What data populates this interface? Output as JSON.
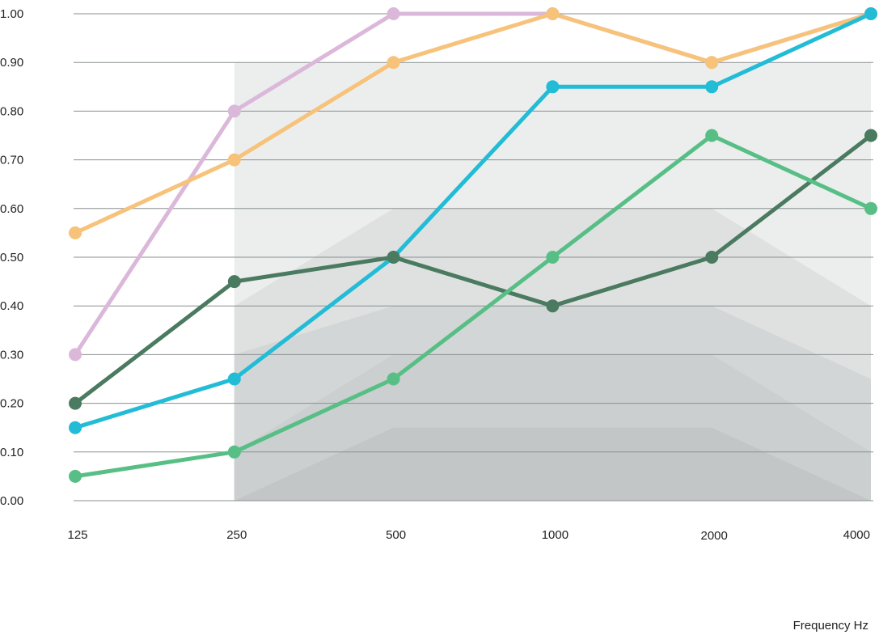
{
  "chart_data": {
    "type": "line",
    "xlabel": "Frequency Hz",
    "ylabel": "",
    "title": "",
    "categories": [
      "125",
      "250",
      "500",
      "1000",
      "2000",
      "4000"
    ],
    "ylim": [
      0,
      1
    ],
    "yticks": [
      "0.00",
      "0.10",
      "0.20",
      "0.30",
      "0.40",
      "0.50",
      "0.60",
      "0.70",
      "0.80",
      "0.90",
      "1.00"
    ],
    "grid": "horizontal",
    "legend": "none",
    "bands": [
      {
        "values": [
          null,
          0.6,
          0.8,
          0.8,
          0.8,
          0.7
        ],
        "color": "#eceeee"
      },
      {
        "values": [
          null,
          0.4,
          0.6,
          0.6,
          0.6,
          0.4
        ],
        "color": "#dfe1e1"
      },
      {
        "values": [
          null,
          0.3,
          0.4,
          0.4,
          0.4,
          0.25
        ],
        "color": "#d3d6d6"
      },
      {
        "values": [
          null,
          0.1,
          0.3,
          0.3,
          0.3,
          0.1
        ],
        "color": "#caceff"
      },
      {
        "values": [
          null,
          0.0,
          0.15,
          0.15,
          0.15,
          0.0
        ],
        "color": "#c2c6c6"
      }
    ],
    "band_top": [
      null,
      0.9,
      0.9,
      0.9,
      0.9,
      0.9
    ],
    "band_top_color": "#eceeee",
    "series": [
      {
        "values": [
          0.3,
          0.8,
          1.0,
          1.0,
          0.9,
          1.0
        ],
        "color": "#dbb8da"
      },
      {
        "values": [
          0.55,
          0.7,
          0.9,
          1.0,
          0.9,
          1.0
        ],
        "color": "#f7c27a"
      },
      {
        "values": [
          0.15,
          0.25,
          0.5,
          0.85,
          0.85,
          1.0
        ],
        "color": "#22bcd6"
      },
      {
        "values": [
          0.2,
          0.45,
          0.5,
          0.4,
          0.5,
          0.75
        ],
        "color": "#4a7a5f"
      },
      {
        "values": [
          0.05,
          0.1,
          0.25,
          0.5,
          0.75,
          0.6
        ],
        "color": "#57bf85"
      }
    ]
  }
}
